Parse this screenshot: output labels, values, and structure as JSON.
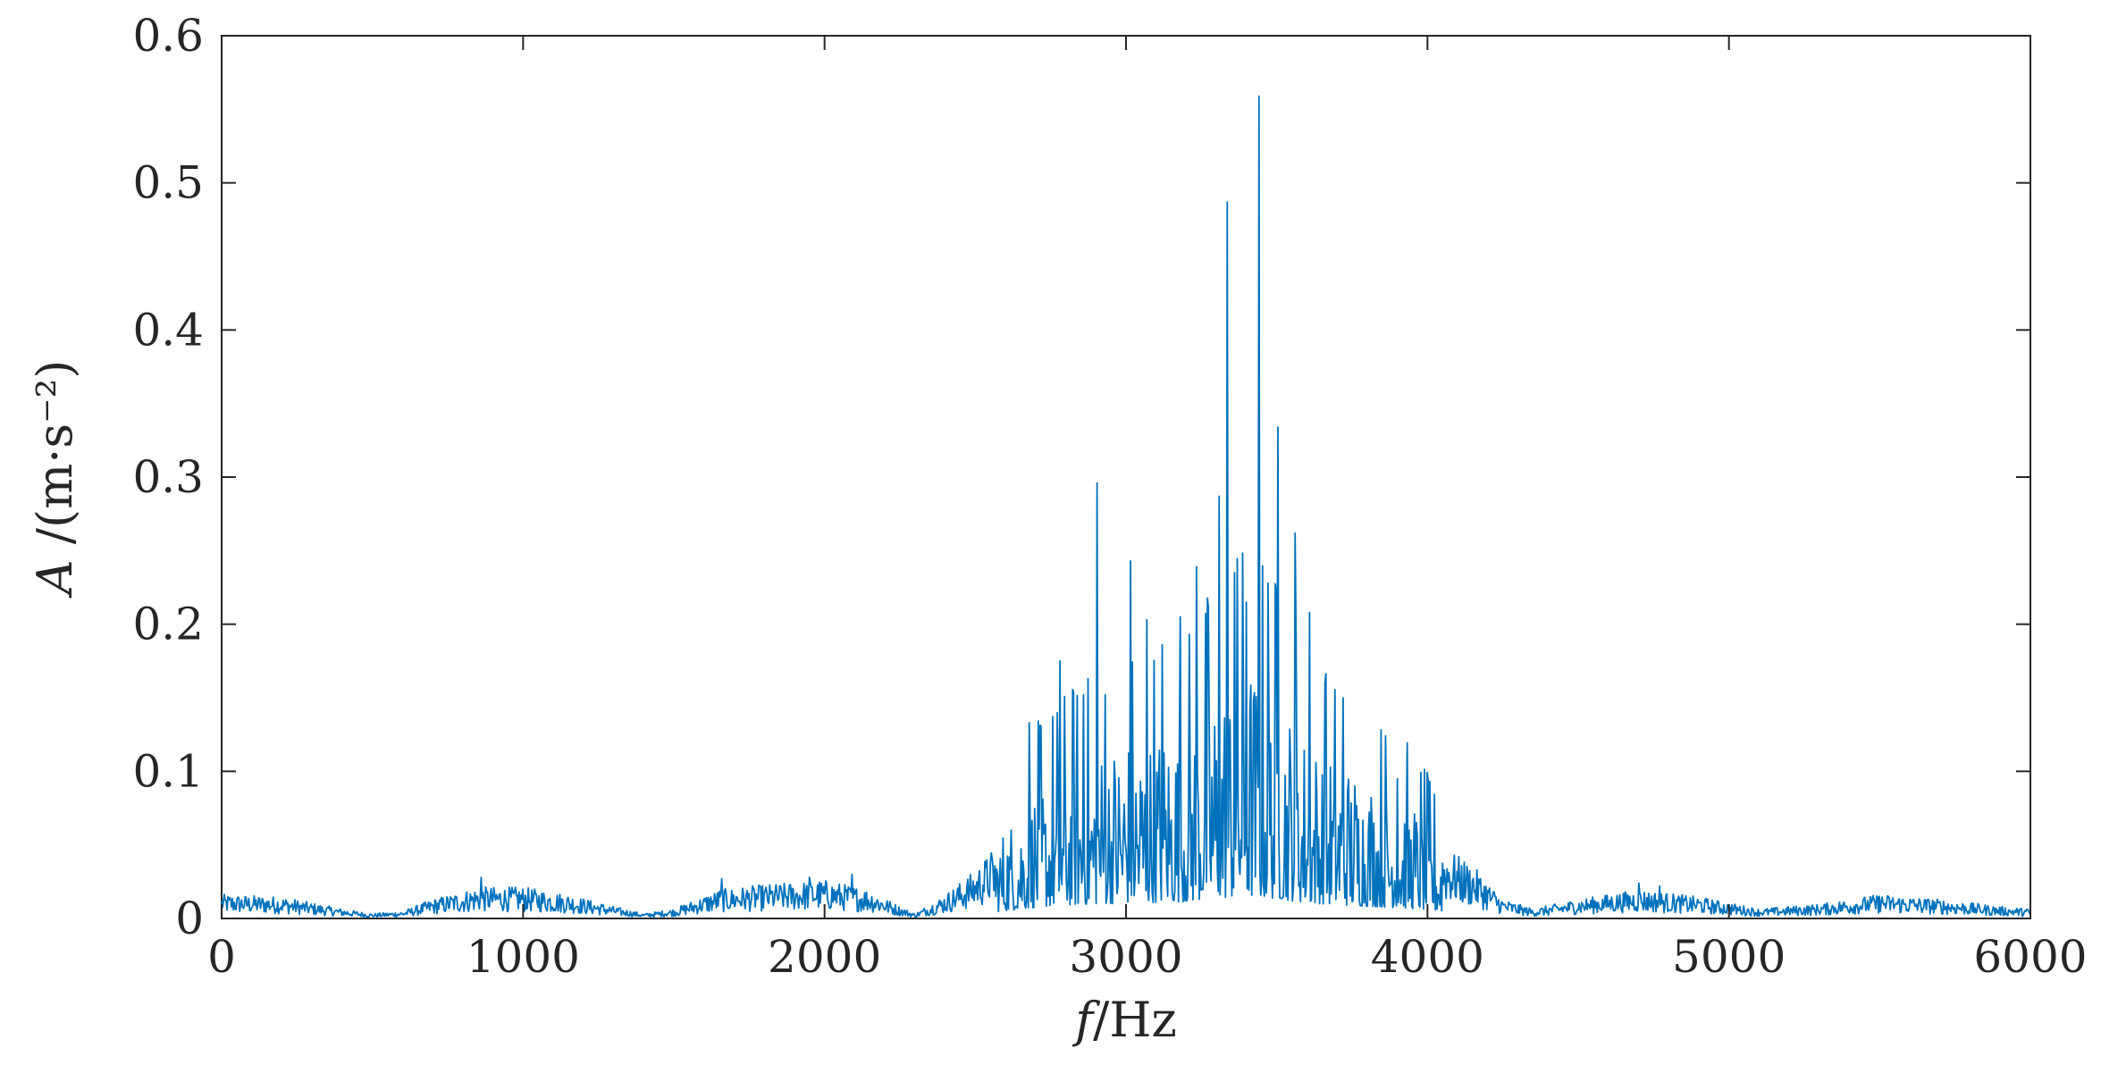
{
  "chart_data": {
    "type": "line",
    "xlabel": "f/Hz",
    "ylabel": "A /(m·s⁻²)",
    "xlim": [
      0,
      6000
    ],
    "ylim": [
      0,
      0.6
    ],
    "xticks": [
      0,
      1000,
      2000,
      3000,
      4000,
      5000,
      6000
    ],
    "xtick_labels": [
      "0",
      "1000",
      "2000",
      "3000",
      "4000",
      "5000",
      "6000"
    ],
    "yticks": [
      0,
      0.1,
      0.2,
      0.3,
      0.4,
      0.5,
      0.6
    ],
    "ytick_labels": [
      "0",
      "0.1",
      "0.2",
      "0.3",
      "0.4",
      "0.5",
      "0.6"
    ],
    "grid": false,
    "legend": "none",
    "series_color": "#0072BD",
    "envelope": [
      [
        0,
        0.01
      ],
      [
        200,
        0.009
      ],
      [
        400,
        0.004
      ],
      [
        500,
        0.002
      ],
      [
        600,
        0.003
      ],
      [
        700,
        0.008
      ],
      [
        850,
        0.013
      ],
      [
        1000,
        0.013
      ],
      [
        1150,
        0.01
      ],
      [
        1300,
        0.005
      ],
      [
        1400,
        0.002
      ],
      [
        1500,
        0.004
      ],
      [
        1650,
        0.012
      ],
      [
        1800,
        0.014
      ],
      [
        2000,
        0.016
      ],
      [
        2150,
        0.012
      ],
      [
        2250,
        0.005
      ],
      [
        2300,
        0.002
      ],
      [
        2400,
        0.01
      ],
      [
        2500,
        0.02
      ],
      [
        2600,
        0.035
      ],
      [
        2700,
        0.05
      ],
      [
        2800,
        0.06
      ],
      [
        3000,
        0.07
      ],
      [
        3200,
        0.075
      ],
      [
        3300,
        0.09
      ],
      [
        3400,
        0.1
      ],
      [
        3500,
        0.09
      ],
      [
        3600,
        0.07
      ],
      [
        3800,
        0.055
      ],
      [
        3950,
        0.045
      ],
      [
        4050,
        0.03
      ],
      [
        4150,
        0.022
      ],
      [
        4250,
        0.008
      ],
      [
        4350,
        0.004
      ],
      [
        4500,
        0.008
      ],
      [
        4700,
        0.012
      ],
      [
        4900,
        0.009
      ],
      [
        5100,
        0.004
      ],
      [
        5300,
        0.006
      ],
      [
        5500,
        0.01
      ],
      [
        5700,
        0.008
      ],
      [
        5900,
        0.005
      ],
      [
        6000,
        0.004
      ]
    ],
    "peaks": [
      [
        860,
        0.028
      ],
      [
        1660,
        0.027
      ],
      [
        1950,
        0.028
      ],
      [
        2090,
        0.03
      ],
      [
        2680,
        0.133
      ],
      [
        2780,
        0.175
      ],
      [
        2860,
        0.152
      ],
      [
        2905,
        0.296
      ],
      [
        2930,
        0.152
      ],
      [
        3015,
        0.243
      ],
      [
        3070,
        0.203
      ],
      [
        3120,
        0.186
      ],
      [
        3180,
        0.205
      ],
      [
        3235,
        0.239
      ],
      [
        3310,
        0.287
      ],
      [
        3335,
        0.487
      ],
      [
        3360,
        0.235
      ],
      [
        3400,
        0.215
      ],
      [
        3440,
        0.559
      ],
      [
        3470,
        0.228
      ],
      [
        3505,
        0.334
      ],
      [
        3560,
        0.262
      ],
      [
        3610,
        0.208
      ],
      [
        3660,
        0.16
      ],
      [
        3720,
        0.15
      ],
      [
        3900,
        0.095
      ],
      [
        4700,
        0.024
      ],
      [
        4770,
        0.022
      ],
      [
        5500,
        0.015
      ]
    ]
  }
}
